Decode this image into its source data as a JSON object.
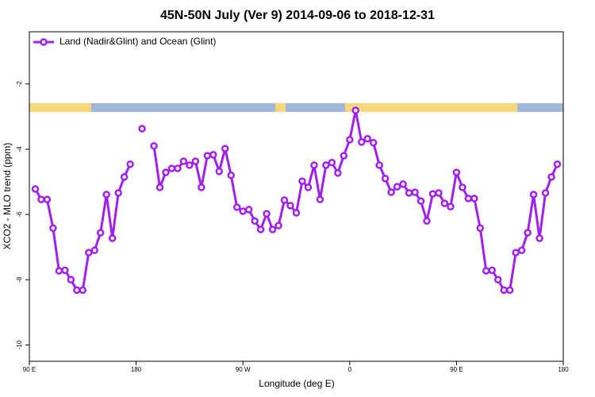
{
  "chart_data": {
    "type": "line",
    "title": "45N-50N July (Ver 9)   2014-09-06 to 2018-12-31",
    "x_label": "Longitude (deg E)",
    "y_label": "XCO2 - MLO trend (ppm)",
    "x": [
      95,
      100,
      105,
      110,
      115,
      120,
      125,
      130,
      135,
      140,
      145,
      150,
      155,
      160,
      165,
      170,
      175,
      180,
      185,
      190,
      195,
      200,
      205,
      210,
      215,
      220,
      225,
      230,
      235,
      240,
      245,
      250,
      255,
      260,
      265,
      270,
      275,
      280,
      285,
      290,
      295,
      300,
      305,
      310,
      315,
      320,
      325,
      330,
      335,
      340,
      345,
      350,
      355,
      360,
      365,
      370,
      375,
      380,
      385,
      390,
      395,
      400,
      405,
      410,
      415,
      420,
      425,
      430,
      435,
      440,
      445,
      450,
      455,
      460,
      465,
      470,
      475,
      480,
      485,
      490,
      495,
      500,
      505,
      510,
      515,
      520,
      525,
      530,
      535
    ],
    "series": [
      {
        "name": "Land (Nadir&Glint) and Ocean (Glint)",
        "color": "#a020f0",
        "values": [
          -5.22,
          -5.54,
          -5.54,
          -6.42,
          -7.73,
          -7.71,
          -8.0,
          -8.32,
          -8.32,
          -7.17,
          -7.1,
          -6.56,
          -5.39,
          -6.73,
          -5.34,
          -4.85,
          -4.46,
          null,
          -3.37,
          null,
          -3.9,
          -5.17,
          -4.71,
          -4.59,
          -4.59,
          -4.37,
          -4.49,
          -4.37,
          -5.17,
          -4.2,
          -4.17,
          -4.68,
          -3.98,
          -4.8,
          -5.78,
          -5.9,
          -5.85,
          -6.2,
          -6.46,
          -5.98,
          -6.46,
          -6.34,
          -5.56,
          -5.73,
          -5.95,
          -4.98,
          -5.17,
          -4.49,
          -5.54,
          -4.49,
          -4.41,
          -4.73,
          -4.2,
          -3.71,
          -2.81,
          -3.78,
          -3.68,
          -3.8,
          -4.49,
          -4.9,
          -5.32,
          -5.15,
          -5.07,
          -5.34,
          -5.32,
          -5.59,
          -6.2,
          -5.37,
          -5.34,
          -5.66,
          -5.76,
          -4.71,
          -5.17,
          -5.51,
          -5.51,
          -6.42,
          -7.73,
          -7.71,
          -8.0,
          -8.32,
          -8.32,
          -7.17,
          -7.1,
          -6.56,
          -5.39,
          -6.73,
          -5.34,
          -4.85,
          -4.46
        ]
      }
    ],
    "xlim": [
      90,
      540
    ],
    "xticks": [
      {
        "value": 90,
        "label": "90 E"
      },
      {
        "value": 180,
        "label": "180"
      },
      {
        "value": 270,
        "label": "90 W"
      },
      {
        "value": 360,
        "label": "0"
      },
      {
        "value": 450,
        "label": "90 E"
      },
      {
        "value": 540,
        "label": "180"
      }
    ],
    "ylim": [
      -10.5,
      -0.4
    ],
    "yticks": [
      -2,
      -4,
      -6,
      -8,
      -10
    ],
    "legend": "top-left"
  }
}
